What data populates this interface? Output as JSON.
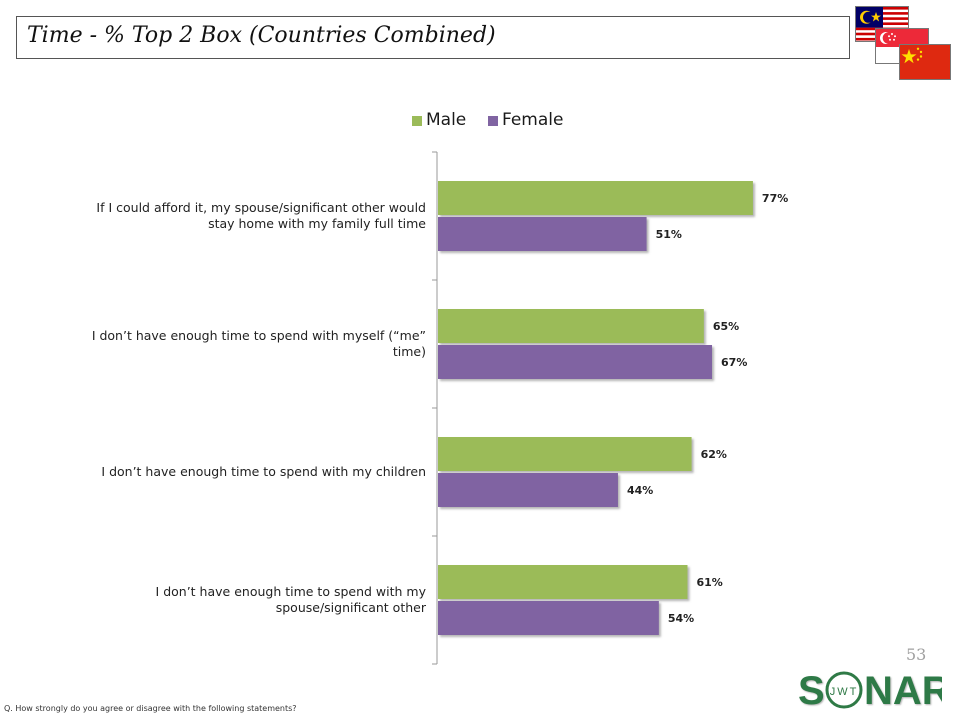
{
  "title": "Time - % Top 2 Box (Countries Combined)",
  "page_number": "53",
  "footnote": "Q. How strongly do you agree or disagree with the following statements?",
  "logo": {
    "text": "SONAR",
    "subtext": "JWT",
    "color": "#2f7a46"
  },
  "flag_icons": [
    "malaysia-flag-icon",
    "singapore-flag-icon",
    "china-flag-icon"
  ],
  "colors": {
    "male": "#9bbb59",
    "female": "#8064a2",
    "axis": "#999999"
  },
  "chart_data": {
    "type": "bar",
    "orientation": "horizontal",
    "categories": [
      [
        "If I could afford it, my spouse/significant other would",
        "stay home with my family full time"
      ],
      [
        "I don’t have enough time to spend with myself (“me”",
        "time)"
      ],
      [
        "I don’t have enough time to spend with my children"
      ],
      [
        "I don’t have enough time to spend with my",
        "spouse/significant other"
      ]
    ],
    "series": [
      {
        "name": "Male",
        "values": [
          77,
          65,
          62,
          61
        ],
        "labels": [
          "77%",
          "65%",
          "62%",
          "61%"
        ]
      },
      {
        "name": "Female",
        "values": [
          51,
          67,
          44,
          54
        ],
        "labels": [
          "51%",
          "67%",
          "44%",
          "54%"
        ]
      }
    ],
    "legend_position": "top",
    "xlim": [
      0,
      100
    ],
    "grid": false
  }
}
